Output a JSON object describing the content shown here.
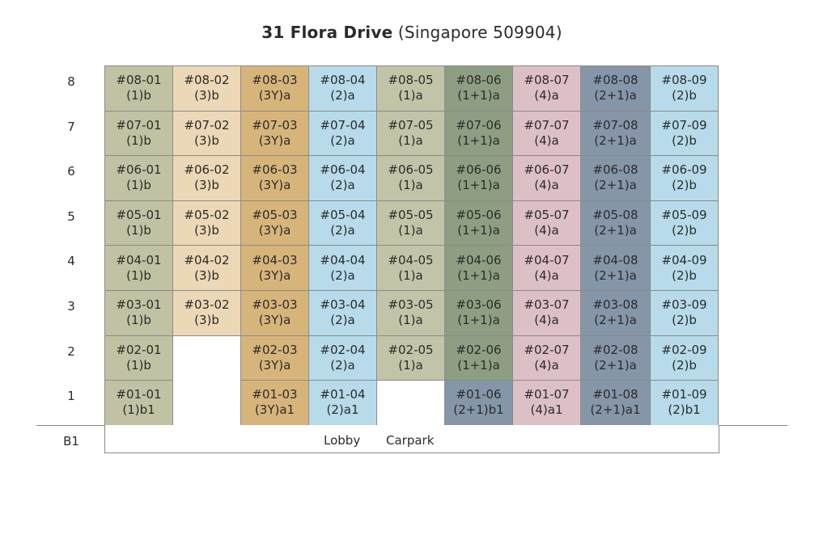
{
  "title": {
    "bold": "31 Flora Drive",
    "normal": "(Singapore 509904)"
  },
  "colors": {
    "c1": "#c1c2a3",
    "c2": "#ecd8b6",
    "c3": "#d7b57a",
    "c4": "#b7dbea",
    "c5": "#c1c4a7",
    "c6": "#8d9e82",
    "c7": "#ddc0c6",
    "c8": "#8596a8",
    "c9": "#b7dbea"
  },
  "floors": [
    "8",
    "7",
    "6",
    "5",
    "4",
    "3",
    "2",
    "1"
  ],
  "basement": {
    "label": "B1",
    "lobby": "Lobby",
    "carpark": "Carpark"
  },
  "units": {
    "8": [
      {
        "no": "#08-01",
        "type": "(1)b"
      },
      {
        "no": "#08-02",
        "type": "(3)b"
      },
      {
        "no": "#08-03",
        "type": "(3Y)a"
      },
      {
        "no": "#08-04",
        "type": "(2)a"
      },
      {
        "no": "#08-05",
        "type": "(1)a"
      },
      {
        "no": "#08-06",
        "type": "(1+1)a"
      },
      {
        "no": "#08-07",
        "type": "(4)a"
      },
      {
        "no": "#08-08",
        "type": "(2+1)a"
      },
      {
        "no": "#08-09",
        "type": "(2)b"
      }
    ],
    "7": [
      {
        "no": "#07-01",
        "type": "(1)b"
      },
      {
        "no": "#07-02",
        "type": "(3)b"
      },
      {
        "no": "#07-03",
        "type": "(3Y)a"
      },
      {
        "no": "#07-04",
        "type": "(2)a"
      },
      {
        "no": "#07-05",
        "type": "(1)a"
      },
      {
        "no": "#07-06",
        "type": "(1+1)a"
      },
      {
        "no": "#07-07",
        "type": "(4)a"
      },
      {
        "no": "#07-08",
        "type": "(2+1)a"
      },
      {
        "no": "#07-09",
        "type": "(2)b"
      }
    ],
    "6": [
      {
        "no": "#06-01",
        "type": "(1)b"
      },
      {
        "no": "#06-02",
        "type": "(3)b"
      },
      {
        "no": "#06-03",
        "type": "(3Y)a"
      },
      {
        "no": "#06-04",
        "type": "(2)a"
      },
      {
        "no": "#06-05",
        "type": "(1)a"
      },
      {
        "no": "#06-06",
        "type": "(1+1)a"
      },
      {
        "no": "#06-07",
        "type": "(4)a"
      },
      {
        "no": "#06-08",
        "type": "(2+1)a"
      },
      {
        "no": "#06-09",
        "type": "(2)b"
      }
    ],
    "5": [
      {
        "no": "#05-01",
        "type": "(1)b"
      },
      {
        "no": "#05-02",
        "type": "(3)b"
      },
      {
        "no": "#05-03",
        "type": "(3Y)a"
      },
      {
        "no": "#05-04",
        "type": "(2)a"
      },
      {
        "no": "#05-05",
        "type": "(1)a"
      },
      {
        "no": "#05-06",
        "type": "(1+1)a"
      },
      {
        "no": "#05-07",
        "type": "(4)a"
      },
      {
        "no": "#05-08",
        "type": "(2+1)a"
      },
      {
        "no": "#05-09",
        "type": "(2)b"
      }
    ],
    "4": [
      {
        "no": "#04-01",
        "type": "(1)b"
      },
      {
        "no": "#04-02",
        "type": "(3)b"
      },
      {
        "no": "#04-03",
        "type": "(3Y)a"
      },
      {
        "no": "#04-04",
        "type": "(2)a"
      },
      {
        "no": "#04-05",
        "type": "(1)a"
      },
      {
        "no": "#04-06",
        "type": "(1+1)a"
      },
      {
        "no": "#04-07",
        "type": "(4)a"
      },
      {
        "no": "#04-08",
        "type": "(2+1)a"
      },
      {
        "no": "#04-09",
        "type": "(2)b"
      }
    ],
    "3": [
      {
        "no": "#03-01",
        "type": "(1)b"
      },
      {
        "no": "#03-02",
        "type": "(3)b"
      },
      {
        "no": "#03-03",
        "type": "(3Y)a"
      },
      {
        "no": "#03-04",
        "type": "(2)a"
      },
      {
        "no": "#03-05",
        "type": "(1)a"
      },
      {
        "no": "#03-06",
        "type": "(1+1)a"
      },
      {
        "no": "#03-07",
        "type": "(4)a"
      },
      {
        "no": "#03-08",
        "type": "(2+1)a"
      },
      {
        "no": "#03-09",
        "type": "(2)b"
      }
    ],
    "2": [
      {
        "no": "#02-01",
        "type": "(1)b"
      },
      null,
      {
        "no": "#02-03",
        "type": "(3Y)a"
      },
      {
        "no": "#02-04",
        "type": "(2)a"
      },
      {
        "no": "#02-05",
        "type": "(1)a"
      },
      {
        "no": "#02-06",
        "type": "(1+1)a"
      },
      {
        "no": "#02-07",
        "type": "(4)a"
      },
      {
        "no": "#02-08",
        "type": "(2+1)a"
      },
      {
        "no": "#02-09",
        "type": "(2)b"
      }
    ],
    "1": [
      {
        "no": "#01-01",
        "type": "(1)b1"
      },
      null,
      {
        "no": "#01-03",
        "type": "(3Y)a1"
      },
      {
        "no": "#01-04",
        "type": "(2)a1"
      },
      null,
      {
        "no": "#01-06",
        "type": "(2+1)b1",
        "color": "#8596a8"
      },
      {
        "no": "#01-07",
        "type": "(4)a1"
      },
      {
        "no": "#01-08",
        "type": "(2+1)a1"
      },
      {
        "no": "#01-09",
        "type": "(2)b1"
      }
    ]
  }
}
